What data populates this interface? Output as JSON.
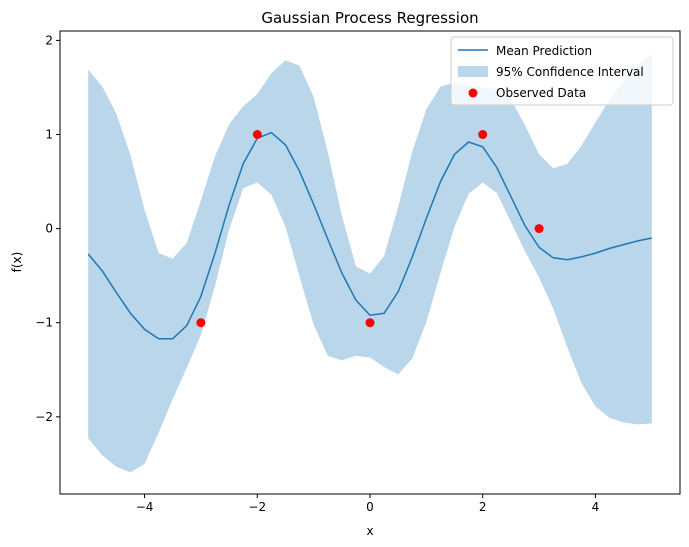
{
  "chart_data": {
    "type": "line",
    "title": "Gaussian Process Regression",
    "xlabel": "x",
    "ylabel": "f(x)",
    "xlim": [
      -5.5,
      5.5
    ],
    "ylim": [
      -2.82,
      2.1
    ],
    "xticks": [
      -4,
      -2,
      0,
      2,
      4
    ],
    "yticks": [
      -2,
      -1,
      0,
      1,
      2
    ],
    "xtick_labels": [
      "−4",
      "−2",
      "0",
      "2",
      "4"
    ],
    "ytick_labels": [
      "−2",
      "−1",
      "0",
      "1",
      "2"
    ],
    "grid": false,
    "legend_position": "top-right",
    "series": [
      {
        "name": "Mean Prediction",
        "kind": "line",
        "color": "#1f77b4",
        "x": [
          -5.0,
          -4.75,
          -4.5,
          -4.25,
          -4.0,
          -3.75,
          -3.5,
          -3.25,
          -3.0,
          -2.75,
          -2.5,
          -2.25,
          -2.0,
          -1.75,
          -1.5,
          -1.25,
          -1.0,
          -0.75,
          -0.5,
          -0.25,
          0.0,
          0.25,
          0.5,
          0.75,
          1.0,
          1.25,
          1.5,
          1.75,
          2.0,
          2.25,
          2.5,
          2.75,
          3.0,
          3.25,
          3.5,
          3.75,
          4.0,
          4.25,
          4.5,
          4.75,
          5.0
        ],
        "y": [
          -0.27,
          -0.45,
          -0.68,
          -0.9,
          -1.07,
          -1.17,
          -1.17,
          -1.03,
          -0.72,
          -0.26,
          0.25,
          0.69,
          0.96,
          1.02,
          0.89,
          0.61,
          0.26,
          -0.11,
          -0.47,
          -0.76,
          -0.92,
          -0.9,
          -0.67,
          -0.3,
          0.11,
          0.5,
          0.79,
          0.92,
          0.87,
          0.65,
          0.34,
          0.03,
          -0.2,
          -0.31,
          -0.33,
          -0.3,
          -0.26,
          -0.21,
          -0.17,
          -0.13,
          -0.1
        ]
      },
      {
        "name": "95% Confidence Interval",
        "kind": "band",
        "color": "#bad6ea",
        "x": [
          -5.0,
          -4.75,
          -4.5,
          -4.25,
          -4.0,
          -3.75,
          -3.5,
          -3.25,
          -3.0,
          -2.75,
          -2.5,
          -2.25,
          -2.0,
          -1.75,
          -1.5,
          -1.25,
          -1.0,
          -0.75,
          -0.5,
          -0.25,
          0.0,
          0.25,
          0.5,
          0.75,
          1.0,
          1.25,
          1.5,
          1.75,
          2.0,
          2.25,
          2.5,
          2.75,
          3.0,
          3.25,
          3.5,
          3.75,
          4.0,
          4.25,
          4.5,
          4.75,
          5.0
        ],
        "upper": [
          1.69,
          1.51,
          1.22,
          0.78,
          0.2,
          -0.26,
          -0.32,
          -0.15,
          0.3,
          0.77,
          1.11,
          1.3,
          1.43,
          1.65,
          1.79,
          1.73,
          1.4,
          0.82,
          0.14,
          -0.4,
          -0.48,
          -0.29,
          0.23,
          0.82,
          1.27,
          1.51,
          1.55,
          1.52,
          1.5,
          1.48,
          1.37,
          1.1,
          0.79,
          0.64,
          0.69,
          0.88,
          1.13,
          1.37,
          1.57,
          1.73,
          1.86
        ],
        "lower": [
          -2.23,
          -2.41,
          -2.53,
          -2.59,
          -2.5,
          -2.17,
          -1.81,
          -1.48,
          -1.13,
          -0.61,
          -0.01,
          0.43,
          0.49,
          0.36,
          0.02,
          -0.51,
          -1.02,
          -1.35,
          -1.4,
          -1.35,
          -1.37,
          -1.47,
          -1.55,
          -1.38,
          -0.99,
          -0.47,
          0.02,
          0.37,
          0.49,
          0.38,
          0.07,
          -0.24,
          -0.52,
          -0.85,
          -1.26,
          -1.64,
          -1.89,
          -2.01,
          -2.06,
          -2.08,
          -2.07
        ]
      },
      {
        "name": "Observed Data",
        "kind": "scatter",
        "color": "#ff0000",
        "x": [
          -3,
          -2,
          0,
          2,
          3
        ],
        "y": [
          -1,
          1,
          -1,
          1,
          0
        ]
      }
    ]
  }
}
